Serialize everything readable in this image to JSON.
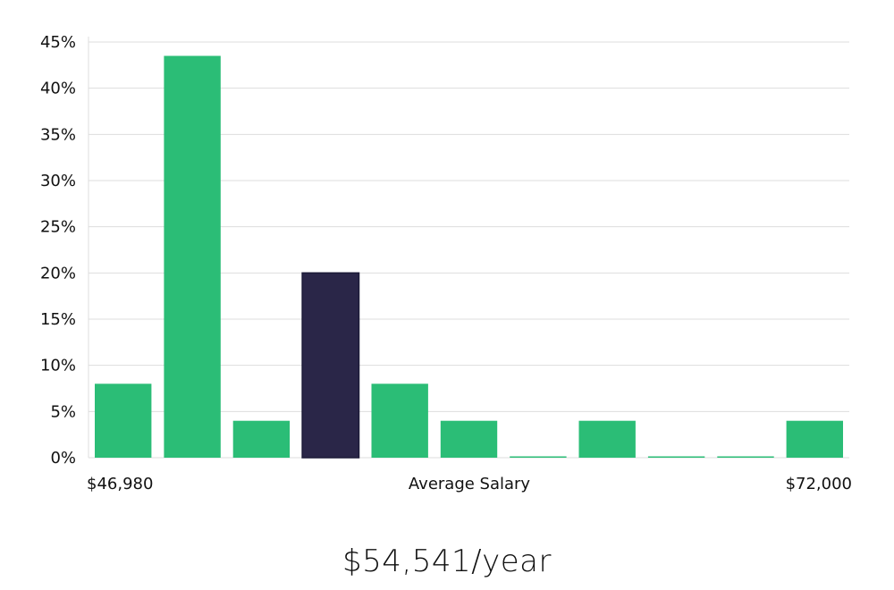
{
  "chart_data": {
    "type": "bar",
    "x_min_label": "$46,980",
    "x_max_label": "$72,000",
    "xlabel": "Average Salary",
    "ylim": [
      0,
      45
    ],
    "y_ticks": [
      "0%",
      "5%",
      "10%",
      "15%",
      "20%",
      "25%",
      "30%",
      "35%",
      "40%",
      "45%"
    ],
    "grid": true,
    "values": [
      8,
      43.5,
      4,
      20,
      8,
      4,
      0,
      4,
      0,
      0,
      4
    ],
    "highlight_index": 3,
    "colors": {
      "bar": "#2bbd76",
      "highlight": "#2a2648",
      "grid": "#dddddd"
    }
  },
  "summary": {
    "salary_text": "$54,541/year"
  }
}
